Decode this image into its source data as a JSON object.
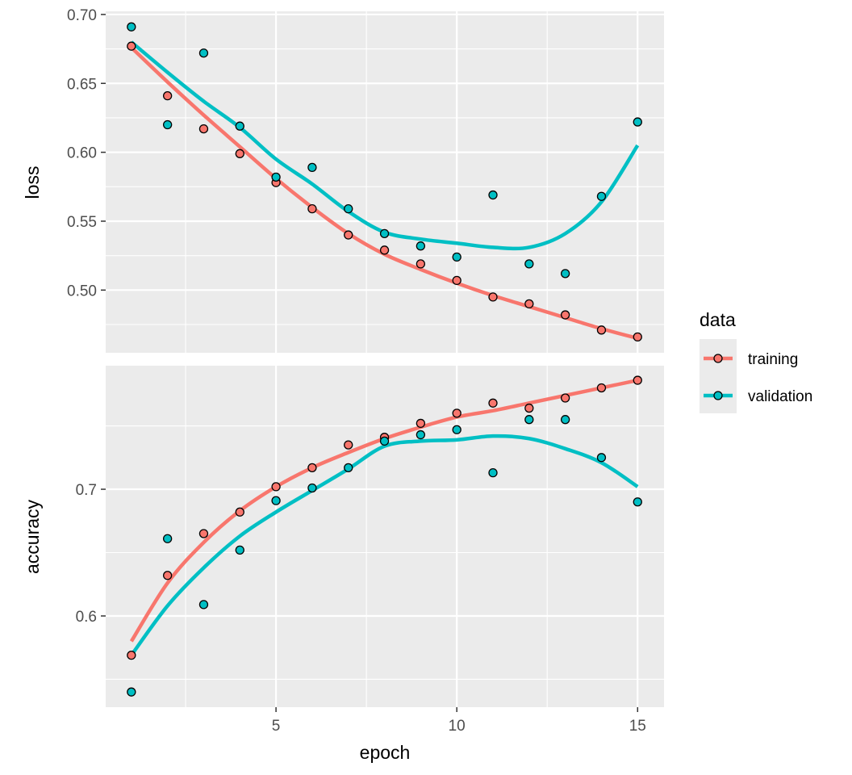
{
  "chart_data": {
    "type": "scatter",
    "xlabel": "epoch",
    "x": [
      1,
      2,
      3,
      4,
      5,
      6,
      7,
      8,
      9,
      10,
      11,
      12,
      13,
      14,
      15
    ],
    "x_ticks": [
      "5",
      "10",
      "15"
    ],
    "xlim": [
      0.29,
      15.73
    ],
    "legend": {
      "title": "data",
      "placement": "right",
      "entries": [
        "training",
        "validation"
      ]
    },
    "colors": {
      "training": "#F8766D",
      "validation": "#00BFC4"
    },
    "panels": [
      {
        "ylabel": "loss",
        "ylim": [
          0.4545,
          0.7023
        ],
        "y_ticks": [
          "0.50",
          "0.55",
          "0.60",
          "0.65",
          "0.70"
        ],
        "series": [
          {
            "name": "training",
            "values": [
              0.677,
              0.641,
              0.617,
              0.599,
              0.578,
              0.559,
              0.54,
              0.529,
              0.519,
              0.507,
              0.495,
              0.49,
              0.482,
              0.471,
              0.466
            ],
            "smooth": [
              0.676,
              0.651,
              0.627,
              0.604,
              0.581,
              0.56,
              0.541,
              0.526,
              0.515,
              0.505,
              0.496,
              0.488,
              0.48,
              0.472,
              0.465
            ]
          },
          {
            "name": "validation",
            "values": [
              0.691,
              0.62,
              0.672,
              0.619,
              0.582,
              0.589,
              0.559,
              0.541,
              0.532,
              0.524,
              0.569,
              0.519,
              0.512,
              0.568,
              0.622
            ],
            "smooth": [
              0.68,
              0.658,
              0.637,
              0.618,
              0.595,
              0.577,
              0.557,
              0.542,
              0.537,
              0.534,
              0.531,
              0.531,
              0.541,
              0.564,
              0.605
            ]
          }
        ]
      },
      {
        "ylabel": "accuracy",
        "ylim": [
          0.528,
          0.7975
        ],
        "y_ticks": [
          "0.6",
          "0.7"
        ],
        "series": [
          {
            "name": "training",
            "values": [
              0.569,
              0.632,
              0.665,
              0.682,
              0.702,
              0.717,
              0.735,
              0.741,
              0.752,
              0.76,
              0.768,
              0.764,
              0.772,
              0.78,
              0.786
            ],
            "smooth": [
              0.58,
              0.626,
              0.658,
              0.683,
              0.702,
              0.717,
              0.729,
              0.74,
              0.749,
              0.757,
              0.762,
              0.768,
              0.774,
              0.78,
              0.786
            ]
          },
          {
            "name": "validation",
            "values": [
              0.54,
              0.661,
              0.609,
              0.652,
              0.691,
              0.701,
              0.717,
              0.738,
              0.743,
              0.747,
              0.713,
              0.755,
              0.755,
              0.725,
              0.69
            ],
            "smooth": [
              0.569,
              0.608,
              0.638,
              0.663,
              0.682,
              0.699,
              0.716,
              0.734,
              0.738,
              0.739,
              0.742,
              0.74,
              0.732,
              0.721,
              0.702
            ]
          }
        ]
      }
    ]
  }
}
